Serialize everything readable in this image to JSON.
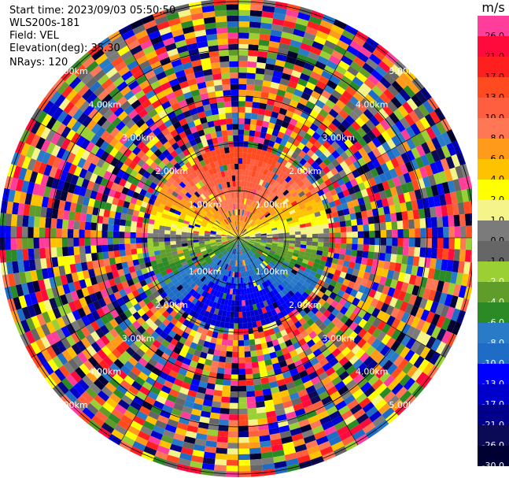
{
  "header": {
    "start_time": "Start time: 2023/09/03 05:50:50",
    "instrument": "WLS200s-181",
    "field": "Field: VEL",
    "elevation": "Elevation(deg): 35.30",
    "nrays": "NRays: 120"
  },
  "plot": {
    "range_labels": [
      "1.00km",
      "2.00km",
      "3.00km",
      "4.00km",
      "5.00km"
    ]
  },
  "colorbar": {
    "unit": "m/s",
    "bins": [
      {
        "label": "26.0",
        "color": "#ff3e9b"
      },
      {
        "label": "21.0",
        "color": "#ff0a3a"
      },
      {
        "label": "17.0",
        "color": "#ff1f1f"
      },
      {
        "label": "13.0",
        "color": "#ff4b1f"
      },
      {
        "label": "10.0",
        "color": "#ff5f3f"
      },
      {
        "label": "8.0",
        "color": "#ff7755"
      },
      {
        "label": "6.0",
        "color": "#ff9a1a"
      },
      {
        "label": "4.0",
        "color": "#ffc200"
      },
      {
        "label": "2.0",
        "color": "#ffff00"
      },
      {
        "label": "1.0",
        "color": "#f4f48a"
      },
      {
        "label": "0.0",
        "color": "#7b7b7b"
      },
      {
        "label": "-1.0",
        "color": "#666666"
      },
      {
        "label": "-2.0",
        "color": "#9ad033"
      },
      {
        "label": "-4.0",
        "color": "#5f9c2a"
      },
      {
        "label": "-6.0",
        "color": "#2c8a26"
      },
      {
        "label": "-8.0",
        "color": "#2a7bc7"
      },
      {
        "label": "-10.0",
        "color": "#1e6cc6"
      },
      {
        "label": "-13.0",
        "color": "#0000ff"
      },
      {
        "label": "-17.0",
        "color": "#0000cc"
      },
      {
        "label": "-21.0",
        "color": "#00008a"
      },
      {
        "label": "-26.0",
        "color": "#0a0a55"
      },
      {
        "label": "-30.0",
        "color": "#000033"
      }
    ]
  }
}
